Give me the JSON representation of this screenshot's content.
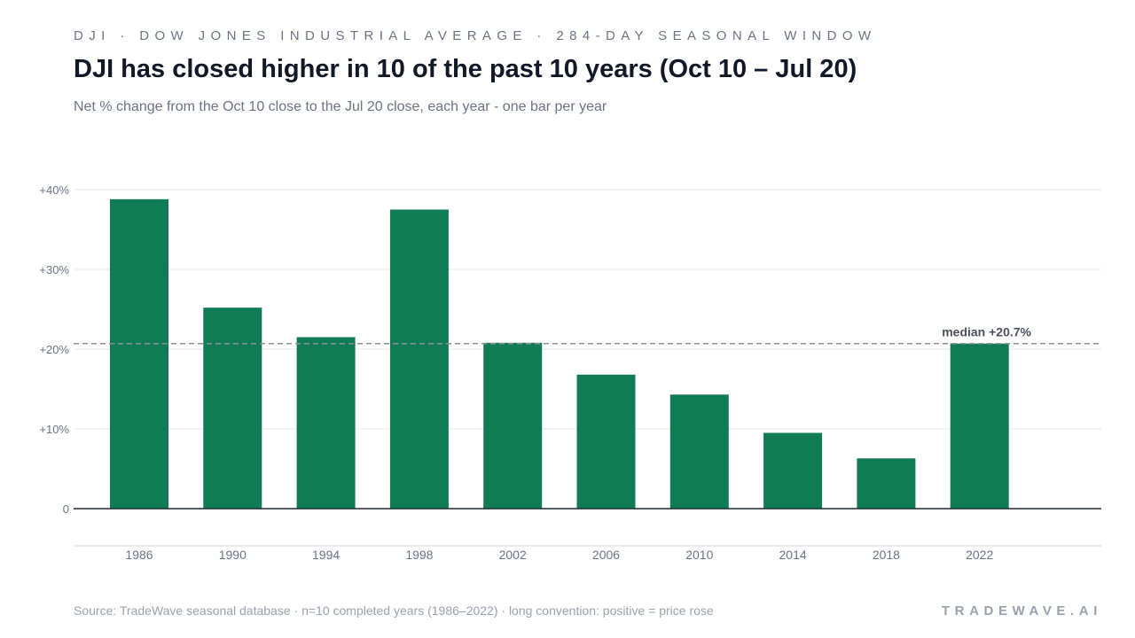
{
  "header": {
    "kicker": "DJI · DOW JONES INDUSTRIAL AVERAGE · 284-DAY SEASONAL WINDOW",
    "title": "DJI has closed higher in 10 of the past 10 years (Oct 10 – Jul 20)",
    "subtitle": "Net % change from the Oct 10 close to the Jul 20 close, each year - one bar per year"
  },
  "footer": {
    "source": "Source: TradeWave seasonal database · n=10 completed years (1986–2022) · long convention: positive = price rose",
    "brand": "TRADEWAVE.AI"
  },
  "colors": {
    "bar": "#107c56",
    "median_line": "#8a8f99",
    "axis": "#1f2937",
    "grid": "#e5e7eb",
    "tick_text": "#6b7385"
  },
  "chart_data": {
    "type": "bar",
    "categories": [
      "1986",
      "1990",
      "1994",
      "1998",
      "2002",
      "2006",
      "2010",
      "2014",
      "2018",
      "2022"
    ],
    "values": [
      38.8,
      25.2,
      21.5,
      37.5,
      20.8,
      16.8,
      14.3,
      9.5,
      6.3,
      20.7
    ],
    "ylim": [
      0,
      40
    ],
    "yticks": [
      0,
      10,
      20,
      30,
      40
    ],
    "ytick_labels": [
      "0",
      "+10%",
      "+20%",
      "+30%",
      "+40%"
    ],
    "median": 20.7,
    "median_label": "median +20.7%",
    "grid": true
  }
}
